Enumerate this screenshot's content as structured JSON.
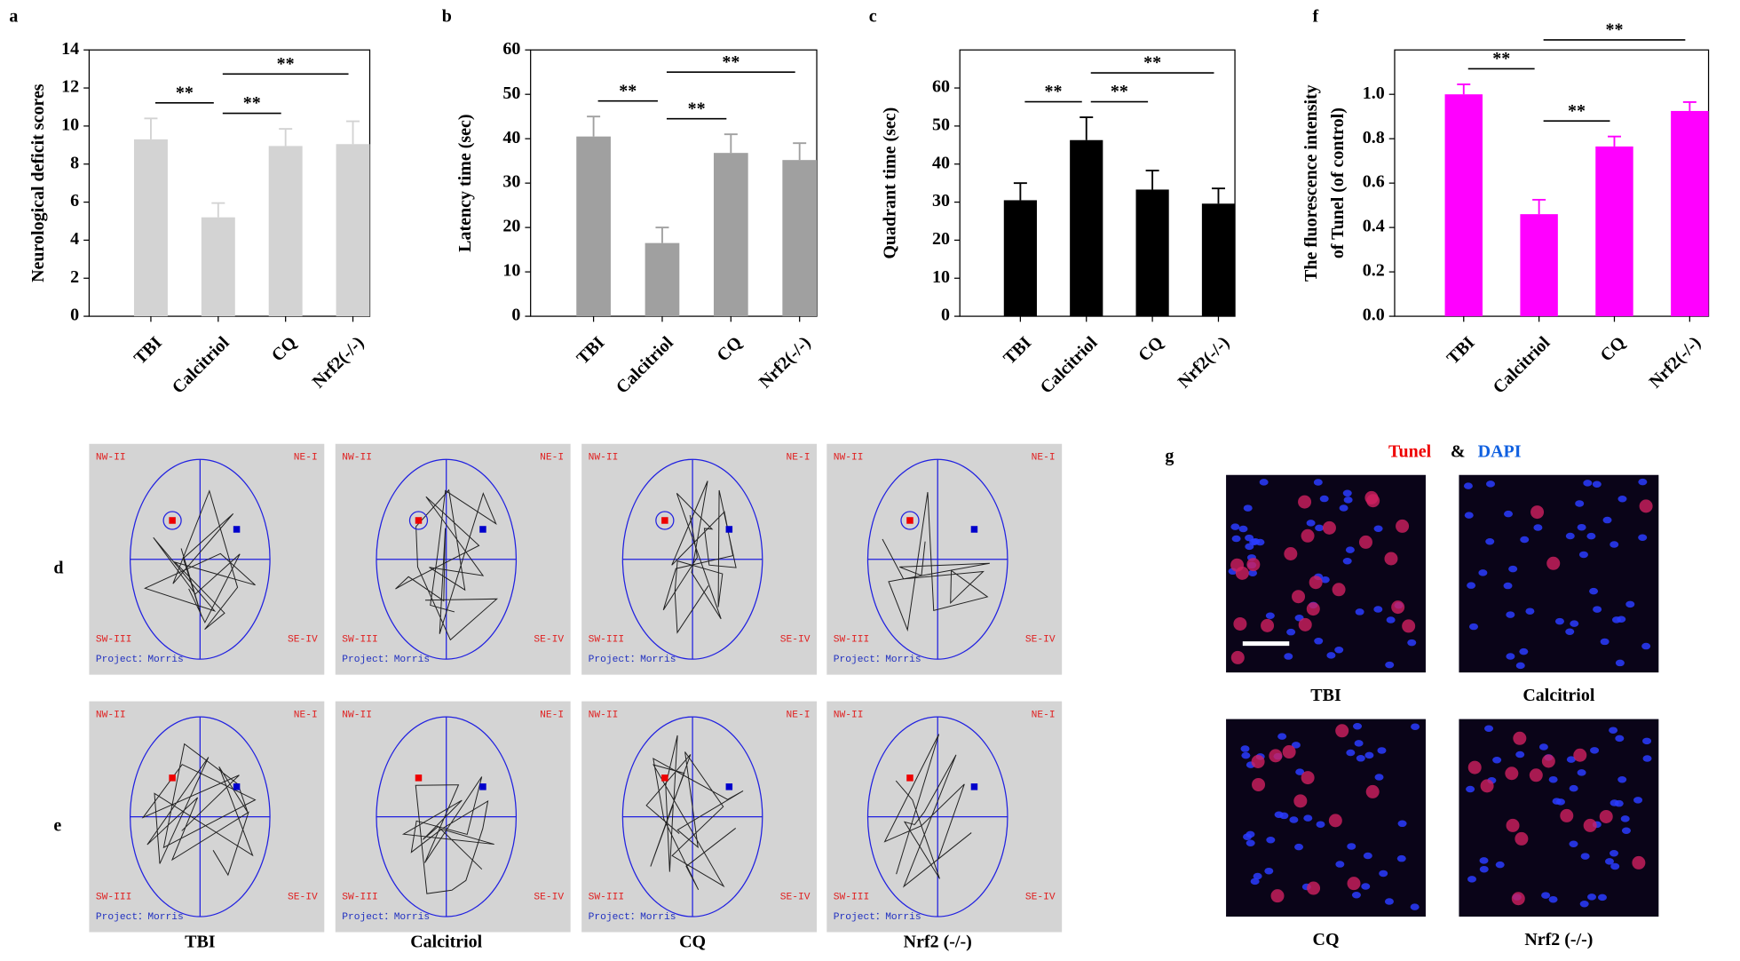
{
  "chart_data": [
    {
      "type": "bar",
      "panel": "a",
      "y_label": "Neurological deficit scores",
      "categories": [
        "TBI",
        "Calcitriol",
        "CQ",
        "Nrf2(-/-)"
      ],
      "values": [
        9.3,
        5.2,
        8.95,
        9.05
      ],
      "errors": [
        1.1,
        0.75,
        0.9,
        1.2
      ],
      "color": "#d3d3d3",
      "ylim": [
        0,
        14
      ],
      "yticks": [
        0,
        2,
        4,
        6,
        8,
        10,
        12,
        14
      ],
      "annotations": [
        {
          "text": "**",
          "between": [
            0,
            1
          ]
        },
        {
          "text": "**",
          "between": [
            1,
            2
          ]
        },
        {
          "text": "**",
          "between": [
            1,
            3
          ]
        }
      ]
    },
    {
      "type": "bar",
      "panel": "b",
      "y_label": "Latency time (sec)",
      "categories": [
        "TBI",
        "Calcitriol",
        "CQ",
        "Nrf2(-/-)"
      ],
      "values": [
        40.5,
        16.5,
        36.8,
        35.2
      ],
      "errors": [
        4.5,
        3.5,
        4.2,
        3.8
      ],
      "color": "#a0a0a0",
      "ylim": [
        0,
        60
      ],
      "yticks": [
        0,
        10,
        20,
        30,
        40,
        50,
        60
      ],
      "annotations": [
        {
          "text": "**",
          "between": [
            0,
            1
          ]
        },
        {
          "text": "**",
          "between": [
            1,
            2
          ]
        },
        {
          "text": "**",
          "between": [
            1,
            3
          ]
        }
      ]
    },
    {
      "type": "bar",
      "panel": "c",
      "y_label": "Quadrant time (sec)",
      "categories": [
        "TBI",
        "Calcitriol",
        "CQ",
        "Nrf2(-/-)"
      ],
      "values": [
        30.5,
        46.3,
        33.3,
        29.6
      ],
      "errors": [
        4.5,
        6,
        5,
        4
      ],
      "color": "#000000",
      "ylim": [
        0,
        70
      ],
      "yticks": [
        0,
        10,
        20,
        30,
        40,
        50,
        60
      ],
      "annotations": [
        {
          "text": "**",
          "between": [
            0,
            1
          ]
        },
        {
          "text": "**",
          "between": [
            1,
            2
          ]
        },
        {
          "text": "**",
          "between": [
            1,
            3
          ]
        }
      ]
    },
    {
      "type": "bar",
      "panel": "f",
      "y_label": "The fluorescence intensity",
      "y_label2": "of Tunel (of control)",
      "categories": [
        "TBI",
        "Calcitriol",
        "CQ",
        "Nrf2(-/-)"
      ],
      "values": [
        1.0,
        0.46,
        0.765,
        0.925
      ],
      "errors": [
        0.045,
        0.065,
        0.045,
        0.04
      ],
      "color": "#ff00ff",
      "ylim": [
        0,
        1.2
      ],
      "yticks": [
        {
          "value": 0,
          "label": "0.0"
        },
        0.2,
        0.4,
        0.6,
        0.8,
        {
          "value": 1,
          "label": "1.0"
        }
      ],
      "annotations": [
        {
          "text": "**",
          "between": [
            0,
            1
          ]
        },
        {
          "text": "**",
          "between": [
            1,
            2
          ]
        },
        {
          "text": "**",
          "between": [
            1,
            3
          ]
        }
      ]
    }
  ],
  "track_panels": {
    "rows": [
      "d",
      "e"
    ],
    "groups": [
      "TBI",
      "Calcitriol",
      "CQ",
      "Nrf2 (-/-)"
    ],
    "quadrants": [
      "NW-II",
      "NE-I",
      "SW-III",
      "SE-IV"
    ],
    "project": "Project：Morris"
  },
  "staining": {
    "panel": "g",
    "stain1": "Tunel",
    "joiner": "&",
    "stain2": "DAPI",
    "groups": [
      "TBI",
      "Calcitriol",
      "CQ",
      "Nrf2 (-/-)"
    ]
  }
}
